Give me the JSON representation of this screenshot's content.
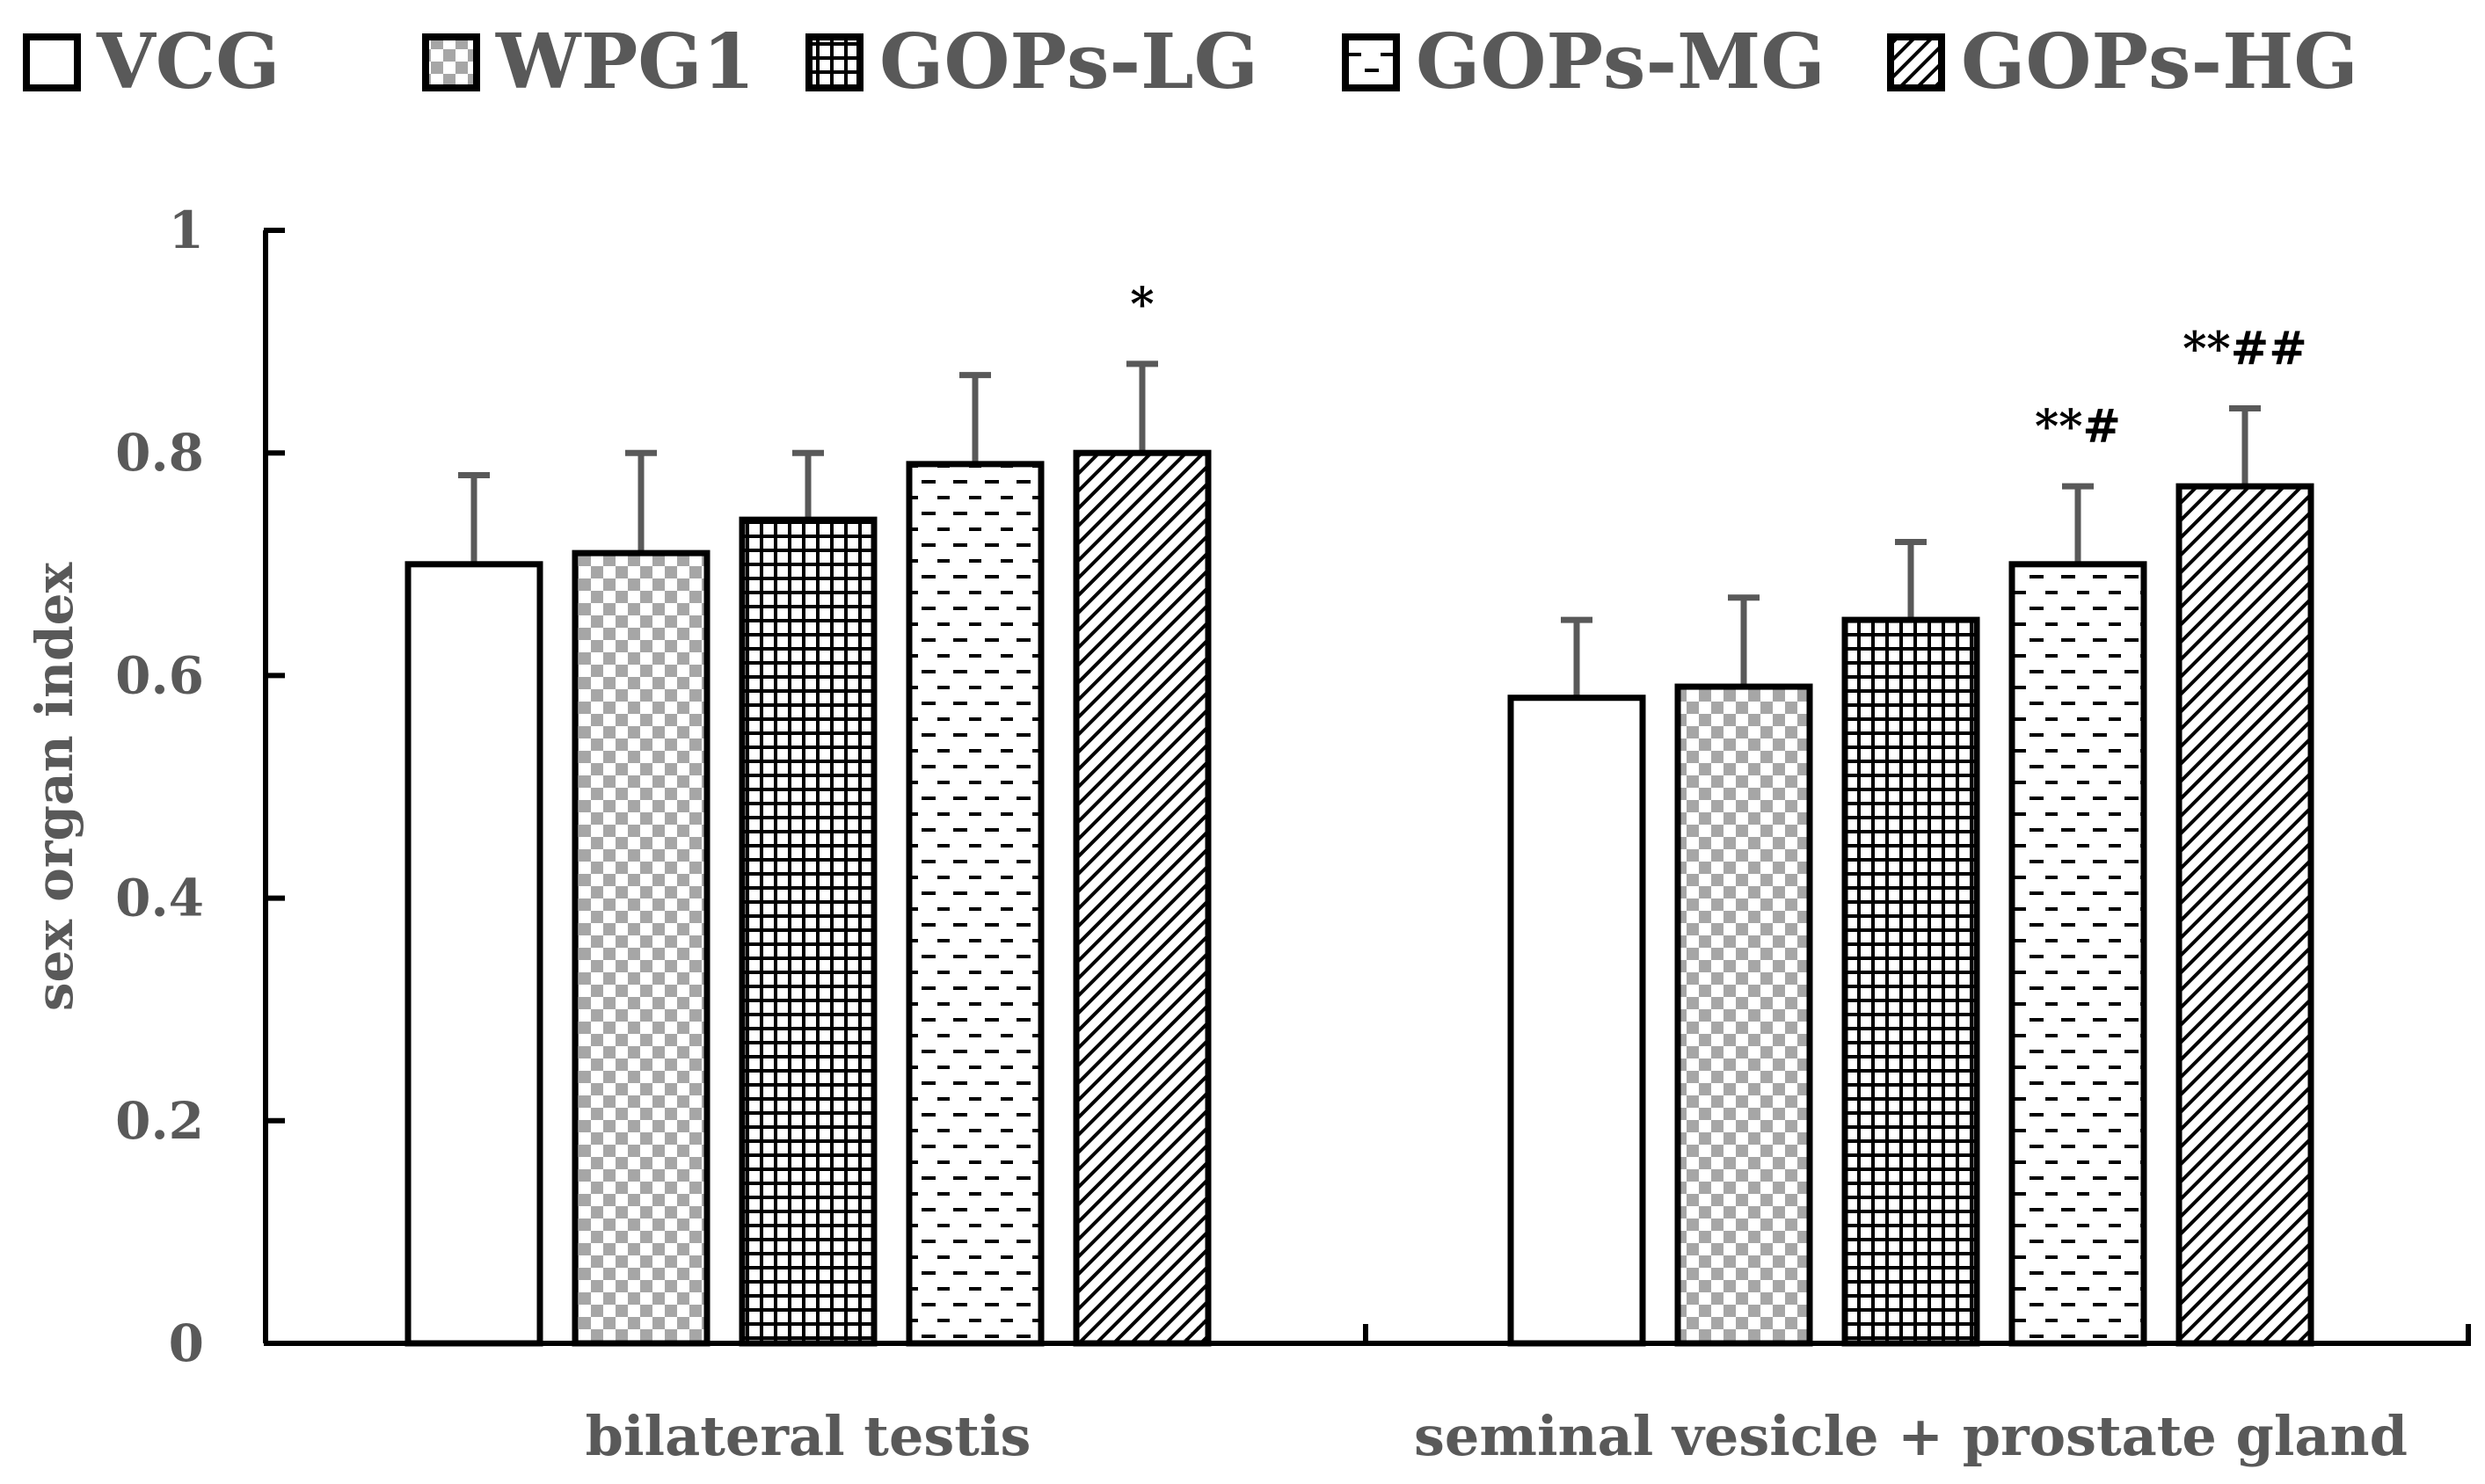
{
  "chart_data": {
    "type": "bar",
    "ylabel": "sex organ index",
    "ylim": [
      0,
      1
    ],
    "yticks": [
      0,
      0.2,
      0.4,
      0.6,
      0.8,
      1
    ],
    "ytick_labels": [
      "0",
      "0.2",
      "0.4",
      "0.6",
      "0.8",
      "1"
    ],
    "grid": false,
    "legend_position": "top",
    "categories": [
      "bilateral testis",
      "seminal vesicle + prostate gland"
    ],
    "series": [
      {
        "name": "VCG",
        "pattern": "solid-white",
        "values": [
          0.7,
          0.58
        ],
        "errors": [
          0.08,
          0.07
        ],
        "annotations": [
          "",
          ""
        ]
      },
      {
        "name": "WPG1",
        "pattern": "checker",
        "values": [
          0.71,
          0.59
        ],
        "errors": [
          0.09,
          0.08
        ],
        "annotations": [
          "",
          ""
        ]
      },
      {
        "name": "GOPs-LG",
        "pattern": "grid",
        "values": [
          0.74,
          0.65
        ],
        "errors": [
          0.06,
          0.07
        ],
        "annotations": [
          "",
          ""
        ]
      },
      {
        "name": "GOPs-MG",
        "pattern": "dashes",
        "values": [
          0.79,
          0.7
        ],
        "errors": [
          0.08,
          0.07
        ],
        "annotations": [
          "",
          "**#"
        ]
      },
      {
        "name": "GOPs-HG",
        "pattern": "diagonal",
        "values": [
          0.8,
          0.77
        ],
        "errors": [
          0.08,
          0.07
        ],
        "annotations": [
          "*",
          "**##"
        ]
      }
    ],
    "colors": {
      "bar_stroke": "#000000",
      "error_bar": "#595959",
      "axis": "#000000",
      "text": "#595959"
    }
  }
}
